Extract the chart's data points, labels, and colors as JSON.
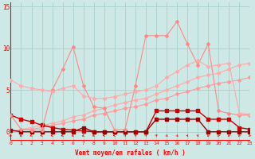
{
  "xlabel": "Vent moyen/en rafales ( km/h )",
  "bg_color": "#cde8e5",
  "grid_color": "#b0d8d4",
  "hours": [
    0,
    1,
    2,
    3,
    4,
    5,
    6,
    7,
    8,
    9,
    10,
    11,
    12,
    13,
    14,
    15,
    16,
    17,
    18,
    19,
    20,
    21,
    22,
    23
  ],
  "line_lightest_y": [
    6.2,
    5.5,
    5.2,
    5.0,
    4.8,
    5.2,
    5.5,
    4.3,
    4.0,
    4.0,
    4.2,
    4.5,
    4.8,
    5.0,
    5.5,
    6.5,
    7.2,
    8.0,
    8.5,
    7.8,
    8.0,
    8.2,
    2.2,
    2.1
  ],
  "line_light_spiky_y": [
    2.0,
    0.3,
    0.2,
    0.2,
    5.0,
    7.5,
    10.2,
    5.5,
    3.0,
    2.8,
    0.2,
    0.3,
    5.5,
    11.5,
    11.5,
    11.5,
    13.2,
    10.5,
    8.0,
    10.5,
    2.5,
    2.2,
    2.0,
    2.0
  ],
  "line_med1_y": [
    0.0,
    0.3,
    0.5,
    0.8,
    1.0,
    1.3,
    1.8,
    2.0,
    2.5,
    2.8,
    3.2,
    3.5,
    3.8,
    4.0,
    4.5,
    5.0,
    5.5,
    6.0,
    6.5,
    6.8,
    7.0,
    7.5,
    8.0,
    8.2
  ],
  "line_med2_y": [
    0.0,
    0.2,
    0.3,
    0.5,
    0.8,
    1.0,
    1.3,
    1.5,
    2.0,
    2.2,
    2.5,
    2.8,
    3.0,
    3.3,
    3.8,
    4.0,
    4.5,
    4.8,
    5.2,
    5.5,
    5.8,
    6.0,
    6.2,
    6.5
  ],
  "line_dark_y": [
    2.0,
    1.5,
    1.2,
    0.8,
    0.5,
    0.3,
    0.2,
    0.1,
    0.0,
    0.0,
    0.0,
    0.0,
    0.0,
    0.0,
    2.5,
    2.5,
    2.5,
    2.5,
    2.5,
    1.5,
    1.5,
    1.5,
    0.5,
    0.3
  ],
  "line_darkest_y": [
    0.2,
    0.0,
    0.0,
    0.0,
    0.0,
    0.0,
    0.0,
    0.5,
    0.0,
    0.0,
    0.0,
    0.0,
    0.0,
    0.0,
    1.5,
    1.5,
    1.5,
    1.5,
    1.5,
    0.0,
    0.0,
    0.0,
    0.0,
    0.0
  ],
  "color_lightest": "#ffaaaa",
  "color_light": "#ff8888",
  "color_med1": "#ffaaaa",
  "color_med2": "#ff9999",
  "color_dark": "#cc0000",
  "color_darkest": "#990000",
  "yticks": [
    0,
    5,
    10,
    15
  ],
  "ylim": [
    -1,
    15.5
  ],
  "xlim": [
    0,
    23
  ]
}
